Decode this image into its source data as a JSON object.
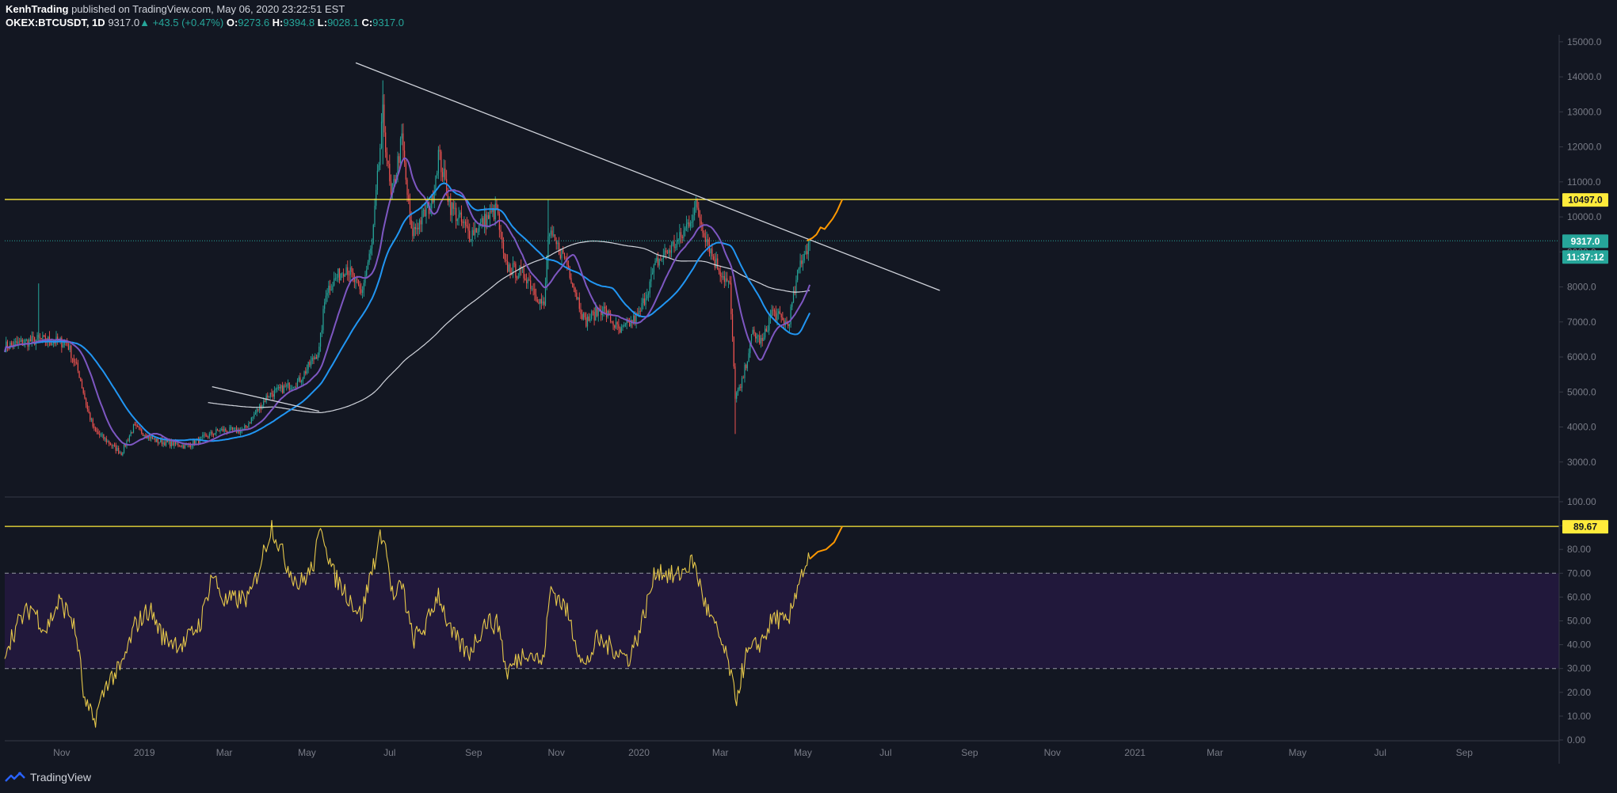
{
  "header": {
    "author": "KenhTrading",
    "published": "published on TradingView.com, May 06, 2020 23:22:51 EST",
    "symbol": "OKEX:BTCUSDT, 1D",
    "last": "9317.0",
    "change": "+43.5 (+0.47%)",
    "o_label": "O:",
    "o_value": "9273.6",
    "h_label": "H:",
    "h_value": "9394.8",
    "l_label": "L:",
    "l_value": "9028.1",
    "c_label": "C:",
    "c_value": "9317.0"
  },
  "brand": {
    "name": "TradingView"
  },
  "colors": {
    "background": "#131722",
    "up": "#26a69a",
    "down": "#ef5350",
    "ma_fast": "#7e57c2",
    "ma_mid": "#2196f3",
    "ma_slow": "#d1d4dc",
    "level": "#ffeb3b",
    "projection": "#ff9800",
    "rsi_band": "#21183b"
  },
  "chart_data": [
    {
      "type": "candlestick",
      "name": "price",
      "x_ticks": [
        "Nov",
        "2019",
        "Mar",
        "May",
        "Jul",
        "Sep",
        "Nov",
        "2020",
        "Mar",
        "May",
        "Jul",
        "Sep",
        "Nov",
        "2021",
        "Mar",
        "May",
        "Jul",
        "Sep"
      ],
      "x_range": [
        "2018-09-20",
        "2021-11-10"
      ],
      "y_ticks": [
        "15000.0",
        "14000.0",
        "13000.0",
        "12000.0",
        "11000.0",
        "10000.0",
        "9000.0",
        "8000.0",
        "7000.0",
        "6000.0",
        "5000.0",
        "4000.0",
        "3000.0"
      ],
      "ylim": [
        2000,
        15200
      ],
      "price_anchors": [
        [
          "2018-09-20",
          6300
        ],
        [
          "2018-10-15",
          6500
        ],
        [
          "2018-11-05",
          6400
        ],
        [
          "2018-11-14",
          5500
        ],
        [
          "2018-11-20",
          4500
        ],
        [
          "2018-11-25",
          3900
        ],
        [
          "2018-12-15",
          3250
        ],
        [
          "2018-12-24",
          4000
        ],
        [
          "2019-01-10",
          3600
        ],
        [
          "2019-02-01",
          3450
        ],
        [
          "2019-02-25",
          3900
        ],
        [
          "2019-03-15",
          3900
        ],
        [
          "2019-04-02",
          4900
        ],
        [
          "2019-04-25",
          5300
        ],
        [
          "2019-05-10",
          6200
        ],
        [
          "2019-05-15",
          7900
        ],
        [
          "2019-05-30",
          8600
        ],
        [
          "2019-06-10",
          7800
        ],
        [
          "2019-06-18",
          9200
        ],
        [
          "2019-06-26",
          12900
        ],
        [
          "2019-07-02",
          10500
        ],
        [
          "2019-07-10",
          12200
        ],
        [
          "2019-07-17",
          9500
        ],
        [
          "2019-08-01",
          10400
        ],
        [
          "2019-08-06",
          11800
        ],
        [
          "2019-08-15",
          10300
        ],
        [
          "2019-08-29",
          9500
        ],
        [
          "2019-09-18",
          10200
        ],
        [
          "2019-09-24",
          8600
        ],
        [
          "2019-10-10",
          8300
        ],
        [
          "2019-10-23",
          7400
        ],
        [
          "2019-10-26",
          9500
        ],
        [
          "2019-11-08",
          8800
        ],
        [
          "2019-11-22",
          7000
        ],
        [
          "2019-12-05",
          7400
        ],
        [
          "2019-12-18",
          6700
        ],
        [
          "2020-01-01",
          7200
        ],
        [
          "2020-01-14",
          8700
        ],
        [
          "2020-02-01",
          9400
        ],
        [
          "2020-02-12",
          10300
        ],
        [
          "2020-02-25",
          8800
        ],
        [
          "2020-03-08",
          8000
        ],
        [
          "2020-03-12",
          4900
        ],
        [
          "2020-03-16",
          5100
        ],
        [
          "2020-03-25",
          6700
        ],
        [
          "2020-04-01",
          6400
        ],
        [
          "2020-04-08",
          7300
        ],
        [
          "2020-04-20",
          6900
        ],
        [
          "2020-04-29",
          8700
        ],
        [
          "2020-05-06",
          9317
        ]
      ],
      "last_candle": {
        "date": "2020-05-06",
        "o": 9273.6,
        "h": 9394.8,
        "l": 9028.1,
        "c": 9317.0
      },
      "price_label": "9317.0",
      "countdown_label": "11:37:12",
      "level_label": "10497.0",
      "level": 10497,
      "trendline": [
        [
          "2019-06-06",
          14400
        ],
        [
          "2020-08-10",
          7900
        ]
      ],
      "trendline2": [
        [
          "2019-02-20",
          5150
        ],
        [
          "2019-05-10",
          4450
        ]
      ],
      "projection": [
        [
          "2020-05-04",
          9317
        ],
        [
          "2020-05-08",
          9400
        ],
        [
          "2020-05-11",
          9500
        ],
        [
          "2020-05-14",
          9700
        ],
        [
          "2020-05-17",
          9650
        ],
        [
          "2020-05-20",
          9800
        ],
        [
          "2020-05-23",
          9950
        ],
        [
          "2020-05-26",
          10150
        ],
        [
          "2020-05-30",
          10497
        ]
      ]
    },
    {
      "type": "line",
      "name": "rsi",
      "y_ticks": [
        "100.00",
        "90.00",
        "80.00",
        "70.00",
        "60.00",
        "50.00",
        "40.00",
        "30.00",
        "20.00",
        "10.00",
        "0.00"
      ],
      "ylim": [
        0,
        100
      ],
      "band": [
        30,
        70
      ],
      "level": 89.67,
      "level_label": "89.67",
      "rsi_anchors": [
        [
          "2018-09-20",
          38
        ],
        [
          "2018-10-01",
          50
        ],
        [
          "2018-10-10",
          56
        ],
        [
          "2018-10-20",
          46
        ],
        [
          "2018-10-30",
          58
        ],
        [
          "2018-11-08",
          52
        ],
        [
          "2018-11-13",
          40
        ],
        [
          "2018-11-18",
          15
        ],
        [
          "2018-11-25",
          8
        ],
        [
          "2018-12-05",
          25
        ],
        [
          "2018-12-15",
          30
        ],
        [
          "2018-12-25",
          48
        ],
        [
          "2019-01-05",
          55
        ],
        [
          "2019-01-15",
          43
        ],
        [
          "2019-01-30",
          40
        ],
        [
          "2019-02-12",
          50
        ],
        [
          "2019-02-20",
          70
        ],
        [
          "2019-03-01",
          58
        ],
        [
          "2019-03-20",
          60
        ],
        [
          "2019-04-05",
          90
        ],
        [
          "2019-04-15",
          75
        ],
        [
          "2019-04-25",
          65
        ],
        [
          "2019-05-05",
          72
        ],
        [
          "2019-05-12",
          90
        ],
        [
          "2019-05-20",
          70
        ],
        [
          "2019-06-01",
          60
        ],
        [
          "2019-06-10",
          52
        ],
        [
          "2019-06-18",
          72
        ],
        [
          "2019-06-26",
          88
        ],
        [
          "2019-07-04",
          58
        ],
        [
          "2019-07-10",
          66
        ],
        [
          "2019-07-18",
          42
        ],
        [
          "2019-07-28",
          48
        ],
        [
          "2019-08-06",
          62
        ],
        [
          "2019-08-15",
          45
        ],
        [
          "2019-08-28",
          36
        ],
        [
          "2019-09-10",
          50
        ],
        [
          "2019-09-20",
          48
        ],
        [
          "2019-09-25",
          28
        ],
        [
          "2019-10-10",
          38
        ],
        [
          "2019-10-22",
          32
        ],
        [
          "2019-10-28",
          64
        ],
        [
          "2019-11-08",
          55
        ],
        [
          "2019-11-22",
          30
        ],
        [
          "2019-12-01",
          42
        ],
        [
          "2019-12-15",
          38
        ],
        [
          "2019-12-24",
          34
        ],
        [
          "2020-01-01",
          45
        ],
        [
          "2020-01-14",
          72
        ],
        [
          "2020-01-28",
          68
        ],
        [
          "2020-02-10",
          75
        ],
        [
          "2020-02-20",
          55
        ],
        [
          "2020-03-01",
          42
        ],
        [
          "2020-03-08",
          30
        ],
        [
          "2020-03-12",
          16
        ],
        [
          "2020-03-20",
          35
        ],
        [
          "2020-04-01",
          42
        ],
        [
          "2020-04-10",
          52
        ],
        [
          "2020-04-20",
          48
        ],
        [
          "2020-04-28",
          68
        ],
        [
          "2020-05-06",
          76
        ]
      ],
      "projection": [
        [
          "2020-05-06",
          76
        ],
        [
          "2020-05-12",
          79
        ],
        [
          "2020-05-18",
          80
        ],
        [
          "2020-05-24",
          83
        ],
        [
          "2020-05-30",
          89.67
        ]
      ]
    }
  ]
}
